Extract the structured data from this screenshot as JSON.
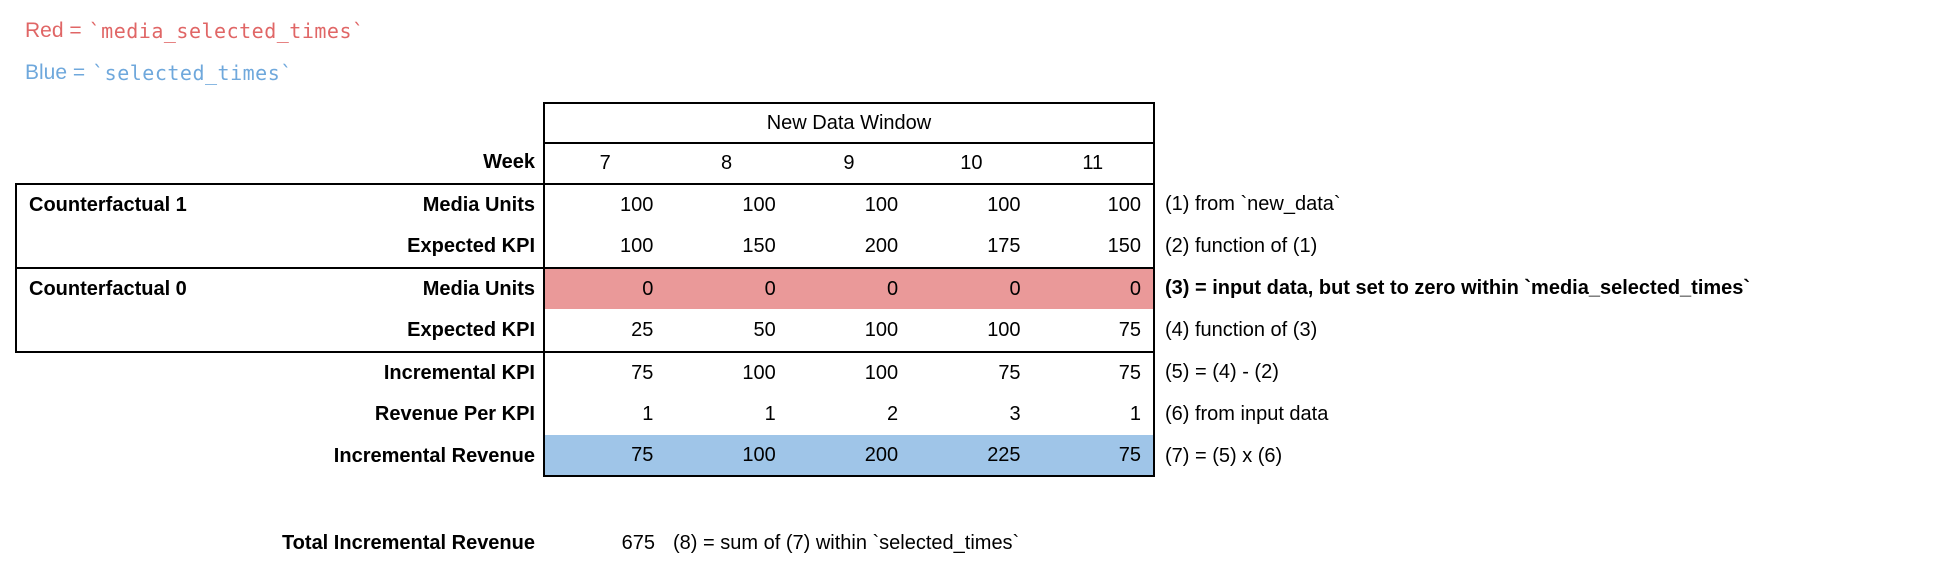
{
  "legend": {
    "red": {
      "term": "Red =",
      "code": "`media_selected_times`",
      "color": "#e06666"
    },
    "blue": {
      "term": "Blue =",
      "code": "`selected_times`",
      "color": "#6fa8dc"
    }
  },
  "table": {
    "header": "New Data Window",
    "week_label": "Week",
    "weeks": [
      "7",
      "8",
      "9",
      "10",
      "11"
    ],
    "highlight_colors": {
      "red": "#ea9999",
      "blue": "#9fc5e8"
    },
    "rows": [
      {
        "group": "Counterfactual 1",
        "label": "Media Units",
        "values": [
          "100",
          "100",
          "100",
          "100",
          "100"
        ],
        "annotation": "(1) from `new_data`"
      },
      {
        "group": "",
        "label": "Expected KPI",
        "values": [
          "100",
          "150",
          "200",
          "175",
          "150"
        ],
        "annotation": "(2) function of (1)"
      },
      {
        "group": "Counterfactual 0",
        "label": "Media Units",
        "values": [
          "0",
          "0",
          "0",
          "0",
          "0"
        ],
        "annotation": "(3) = input data, but set to zero within `media_selected_times`",
        "highlight": "red",
        "annotation_bold": true
      },
      {
        "group": "",
        "label": "Expected KPI",
        "values": [
          "25",
          "50",
          "100",
          "100",
          "75"
        ],
        "annotation": "(4) function of (3)"
      },
      {
        "group": "",
        "label": "Incremental KPI",
        "values": [
          "75",
          "100",
          "100",
          "75",
          "75"
        ],
        "annotation": "(5) = (4) - (2)"
      },
      {
        "group": "",
        "label": "Revenue Per KPI",
        "values": [
          "1",
          "1",
          "2",
          "3",
          "1"
        ],
        "annotation": "(6) from input data"
      },
      {
        "group": "",
        "label": "Incremental Revenue",
        "values": [
          "75",
          "100",
          "200",
          "225",
          "75"
        ],
        "annotation": "(7) = (5) x (6)",
        "highlight": "blue"
      }
    ]
  },
  "total": {
    "label": "Total Incremental Revenue",
    "value": "675",
    "annotation": "(8) = sum of (7) within `selected_times`"
  }
}
